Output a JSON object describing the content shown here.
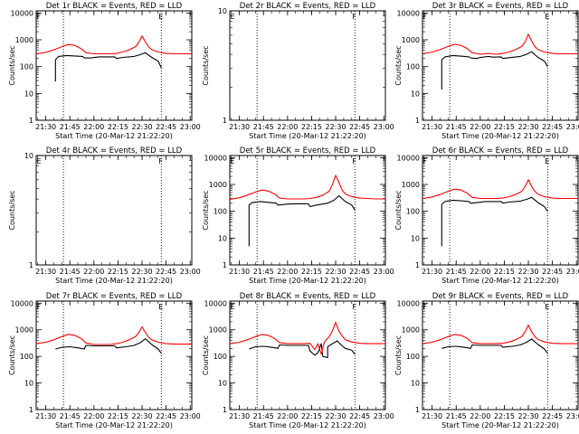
{
  "page": {
    "background": "#ffffff",
    "event_color": "#000000",
    "lld_color": "#ff0000"
  },
  "chart_data": [
    {
      "type": "line",
      "title": "Det 1r BLACK = Events, RED = LLD",
      "xlabel": "Start Time (20-Mar-12 21:22:20)",
      "ylabel": "Counts/sec",
      "xlim": [
        "21:24",
        "23:01"
      ],
      "ylim": [
        1,
        12000
      ],
      "yscale": "log",
      "xticks": [
        "21:30",
        "21:45",
        "22:00",
        "22:15",
        "22:30",
        "22:45",
        "23:00"
      ],
      "yticks": [
        "1",
        "10",
        "100",
        "1000",
        "10000"
      ],
      "markers": {
        "F": "21:26",
        "E": "22:42"
      },
      "vlines": [
        "21:41",
        "22:42"
      ],
      "series": [
        {
          "name": "Events",
          "color": "#000000",
          "x": [
            "21:36",
            "21:36",
            "21:38",
            "21:43",
            "21:48",
            "21:53",
            "21:54",
            "21:58",
            "22:03",
            "22:13",
            "22:14",
            "22:18",
            "22:25",
            "22:29",
            "22:32",
            "22:36",
            "22:40",
            "22:42"
          ],
          "y": [
            28,
            180,
            240,
            260,
            250,
            240,
            210,
            210,
            230,
            230,
            200,
            220,
            240,
            280,
            330,
            220,
            160,
            90
          ]
        },
        {
          "name": "LLD",
          "color": "#ff0000",
          "x": [
            "21:24",
            "21:30",
            "21:35",
            "21:40",
            "21:44",
            "21:48",
            "21:52",
            "21:55",
            "22:00",
            "22:05",
            "22:10",
            "22:14",
            "22:18",
            "22:22",
            "22:26",
            "22:28",
            "22:30",
            "22:32",
            "22:34",
            "22:36",
            "22:40",
            "22:45",
            "22:50",
            "22:55",
            "23:01"
          ],
          "y": [
            300,
            340,
            420,
            560,
            670,
            620,
            470,
            330,
            300,
            300,
            300,
            310,
            350,
            420,
            560,
            800,
            1400,
            850,
            560,
            430,
            350,
            310,
            300,
            300,
            300
          ]
        }
      ]
    },
    {
      "type": "line",
      "title": "Det 2r BLACK = Events, RED = LLD",
      "xlabel": "Start Time (20-Mar-12 21:22:20)",
      "ylabel": "Counts/sec",
      "xlim": [
        "21:24",
        "23:01"
      ],
      "ylim": [
        1,
        10
      ],
      "yscale": "log",
      "xticks": [
        "21:30",
        "21:45",
        "22:00",
        "22:15",
        "22:30",
        "22:45",
        "23:00"
      ],
      "yticks": [
        "1",
        "10"
      ],
      "markers": {
        "E": "21:26",
        "F": "22:42"
      },
      "vlines": [
        "21:41",
        "22:42"
      ],
      "series": []
    },
    {
      "type": "line",
      "title": "Det 3r BLACK = Events, RED = LLD",
      "xlabel": "Start Time (20-Mar-12 21:22:20)",
      "ylabel": "Counts/sec",
      "xlim": [
        "21:24",
        "23:01"
      ],
      "ylim": [
        1,
        12000
      ],
      "yscale": "log",
      "xticks": [
        "21:30",
        "21:45",
        "22:00",
        "22:15",
        "22:30",
        "22:45",
        "23:00"
      ],
      "yticks": [
        "1",
        "10",
        "100",
        "1000",
        "10000"
      ],
      "markers": {
        "F": "21:26",
        "E": "22:42"
      },
      "vlines": [
        "21:41",
        "22:42"
      ],
      "series": [
        {
          "name": "Events",
          "color": "#000000",
          "x": [
            "21:36",
            "21:36",
            "21:38",
            "21:43",
            "21:48",
            "21:53",
            "21:54",
            "21:58",
            "22:00",
            "22:05",
            "22:08",
            "22:13",
            "22:14",
            "22:18",
            "22:25",
            "22:29",
            "22:32",
            "22:36",
            "22:40",
            "22:42"
          ],
          "y": [
            14,
            180,
            230,
            260,
            245,
            230,
            210,
            200,
            220,
            240,
            225,
            230,
            200,
            215,
            240,
            290,
            360,
            220,
            160,
            100
          ]
        },
        {
          "name": "LLD",
          "color": "#ff0000",
          "x": [
            "21:24",
            "21:30",
            "21:35",
            "21:40",
            "21:44",
            "21:48",
            "21:52",
            "21:55",
            "22:00",
            "22:05",
            "22:10",
            "22:14",
            "22:18",
            "22:22",
            "22:26",
            "22:28",
            "22:30",
            "22:32",
            "22:34",
            "22:36",
            "22:40",
            "22:45",
            "22:50",
            "22:55",
            "23:01"
          ],
          "y": [
            300,
            350,
            430,
            570,
            680,
            620,
            470,
            330,
            290,
            310,
            290,
            310,
            350,
            430,
            570,
            850,
            1600,
            900,
            570,
            430,
            350,
            310,
            300,
            300,
            300
          ]
        }
      ]
    },
    {
      "type": "line",
      "title": "Det 4r BLACK = Events, RED = LLD",
      "xlabel": "Start Time (20-Mar-12 21:22:20)",
      "ylabel": "Counts/sec",
      "xlim": [
        "21:24",
        "23:01"
      ],
      "ylim": [
        1,
        10
      ],
      "yscale": "log",
      "xticks": [
        "21:30",
        "21:45",
        "22:00",
        "22:15",
        "22:30",
        "22:45",
        "23:00"
      ],
      "yticks": [
        "1",
        "10"
      ],
      "markers": {
        "E": "21:26",
        "F": "22:42"
      },
      "vlines": [
        "21:41",
        "22:42"
      ],
      "series": []
    },
    {
      "type": "line",
      "title": "Det 5r BLACK = Events, RED = LLD",
      "xlabel": "Start Time (20-Mar-12 21:22:20)",
      "ylabel": "Counts/sec",
      "xlim": [
        "21:24",
        "23:01"
      ],
      "ylim": [
        1,
        12000
      ],
      "yscale": "log",
      "xticks": [
        "21:30",
        "21:45",
        "22:00",
        "22:15",
        "22:30",
        "22:45",
        "23:00"
      ],
      "yticks": [
        "1",
        "10",
        "100",
        "1000",
        "10000"
      ],
      "markers": {
        "E": "21:26",
        "F": "22:42"
      },
      "vlines": [
        "21:41",
        "22:42"
      ],
      "series": [
        {
          "name": "Events",
          "color": "#000000",
          "x": [
            "21:36",
            "21:36",
            "21:38",
            "21:43",
            "21:48",
            "21:53",
            "21:54",
            "21:58",
            "22:03",
            "22:13",
            "22:14",
            "22:18",
            "22:25",
            "22:29",
            "22:32",
            "22:36",
            "22:40",
            "22:42"
          ],
          "y": [
            5,
            170,
            210,
            230,
            215,
            200,
            170,
            180,
            190,
            190,
            150,
            170,
            200,
            260,
            380,
            230,
            170,
            110
          ]
        },
        {
          "name": "LLD",
          "color": "#ff0000",
          "x": [
            "21:24",
            "21:30",
            "21:35",
            "21:40",
            "21:44",
            "21:48",
            "21:52",
            "21:55",
            "22:00",
            "22:05",
            "22:10",
            "22:14",
            "22:18",
            "22:22",
            "22:26",
            "22:28",
            "22:30",
            "22:32",
            "22:34",
            "22:36",
            "22:40",
            "22:45",
            "22:50",
            "22:55",
            "23:01"
          ],
          "y": [
            280,
            320,
            400,
            520,
            620,
            570,
            440,
            310,
            290,
            290,
            290,
            300,
            330,
            400,
            560,
            1000,
            2200,
            1200,
            620,
            440,
            350,
            310,
            300,
            290,
            290
          ]
        }
      ]
    },
    {
      "type": "line",
      "title": "Det 6r BLACK = Events, RED = LLD",
      "xlabel": "Start Time (20-Mar-12 21:22:20)",
      "ylabel": "Counts/sec",
      "xlim": [
        "21:24",
        "23:01"
      ],
      "ylim": [
        1,
        12000
      ],
      "yscale": "log",
      "xticks": [
        "21:30",
        "21:45",
        "22:00",
        "22:15",
        "22:30",
        "22:45",
        "23:00"
      ],
      "yticks": [
        "1",
        "10",
        "100",
        "1000",
        "10000"
      ],
      "markers": {
        "F": "21:26",
        "E": "22:42"
      },
      "vlines": [
        "21:41",
        "22:42"
      ],
      "series": [
        {
          "name": "Events",
          "color": "#000000",
          "x": [
            "21:36",
            "21:36",
            "21:38",
            "21:43",
            "21:48",
            "21:53",
            "21:54",
            "21:58",
            "22:03",
            "22:13",
            "22:14",
            "22:18",
            "22:25",
            "22:29",
            "22:32",
            "22:36",
            "22:40",
            "22:42"
          ],
          "y": [
            5,
            180,
            230,
            260,
            245,
            230,
            200,
            210,
            230,
            230,
            200,
            220,
            240,
            280,
            330,
            210,
            150,
            100
          ]
        },
        {
          "name": "LLD",
          "color": "#ff0000",
          "x": [
            "21:24",
            "21:30",
            "21:35",
            "21:40",
            "21:44",
            "21:48",
            "21:52",
            "21:55",
            "22:00",
            "22:05",
            "22:10",
            "22:14",
            "22:18",
            "22:22",
            "22:26",
            "22:28",
            "22:30",
            "22:32",
            "22:34",
            "22:36",
            "22:40",
            "22:45",
            "22:50",
            "22:55",
            "23:01"
          ],
          "y": [
            300,
            340,
            420,
            560,
            670,
            620,
            470,
            330,
            300,
            300,
            300,
            310,
            350,
            420,
            560,
            850,
            1500,
            850,
            560,
            430,
            350,
            310,
            300,
            300,
            300
          ]
        }
      ]
    },
    {
      "type": "line",
      "title": "Det 7r BLACK = Events, RED = LLD",
      "xlabel": "Start Time (20-Mar-12 21:22:20)",
      "ylabel": "Counts/sec",
      "xlim": [
        "21:24",
        "23:01"
      ],
      "ylim": [
        1,
        12000
      ],
      "yscale": "log",
      "xticks": [
        "21:30",
        "21:45",
        "22:00",
        "22:15",
        "22:30",
        "22:45",
        "23:00"
      ],
      "yticks": [
        "1",
        "10",
        "100",
        "1000",
        "10000"
      ],
      "markers": {
        "F": "21:26",
        "E": "22:42"
      },
      "vlines": [
        "21:41",
        "22:42"
      ],
      "series": [
        {
          "name": "Events",
          "color": "#000000",
          "x": [
            "21:36",
            "21:40",
            "21:45",
            "21:50",
            "21:54",
            "21:55",
            "22:00",
            "22:05",
            "22:13",
            "22:14",
            "22:20",
            "22:25",
            "22:29",
            "22:32",
            "22:36",
            "22:40",
            "22:42"
          ],
          "y": [
            190,
            220,
            230,
            210,
            190,
            260,
            250,
            250,
            250,
            210,
            230,
            260,
            330,
            460,
            280,
            190,
            130
          ]
        },
        {
          "name": "LLD",
          "color": "#ff0000",
          "x": [
            "21:24",
            "21:30",
            "21:35",
            "21:40",
            "21:44",
            "21:48",
            "21:52",
            "21:55",
            "22:00",
            "22:05",
            "22:10",
            "22:14",
            "22:18",
            "22:22",
            "22:26",
            "22:28",
            "22:30",
            "22:32",
            "22:34",
            "22:36",
            "22:40",
            "22:45",
            "22:50",
            "22:55",
            "23:01"
          ],
          "y": [
            300,
            340,
            420,
            560,
            680,
            620,
            470,
            320,
            280,
            280,
            280,
            300,
            340,
            420,
            560,
            800,
            1300,
            800,
            540,
            420,
            340,
            300,
            290,
            290,
            290
          ]
        }
      ]
    },
    {
      "type": "line",
      "title": "Det 8r BLACK = Events, RED = LLD",
      "xlabel": "Start Time (20-Mar-12 21:22:20)",
      "ylabel": "Counts/sec",
      "xlim": [
        "21:24",
        "23:01"
      ],
      "ylim": [
        1,
        12000
      ],
      "yscale": "log",
      "xticks": [
        "21:30",
        "21:45",
        "22:00",
        "22:15",
        "22:30",
        "22:45",
        "23:00"
      ],
      "yticks": [
        "1",
        "10",
        "100",
        "1000",
        "10000"
      ],
      "markers": {
        "E": "21:26",
        "F": "22:42"
      },
      "vlines": [
        "21:41",
        "22:42"
      ],
      "series": [
        {
          "name": "Events",
          "color": "#000000",
          "x": [
            "21:36",
            "21:40",
            "21:45",
            "21:50",
            "21:54",
            "21:55",
            "22:00",
            "22:05",
            "22:13",
            "22:14",
            "22:17",
            "22:19",
            "22:21",
            "22:22",
            "22:25",
            "22:25",
            "22:28",
            "22:31",
            "22:34",
            "22:36",
            "22:40",
            "22:42"
          ],
          "y": [
            190,
            230,
            240,
            220,
            200,
            270,
            260,
            260,
            260,
            160,
            110,
            140,
            300,
            100,
            90,
            230,
            300,
            380,
            250,
            200,
            170,
            120
          ]
        },
        {
          "name": "LLD",
          "color": "#ff0000",
          "x": [
            "21:24",
            "21:30",
            "21:35",
            "21:40",
            "21:44",
            "21:48",
            "21:52",
            "21:55",
            "22:00",
            "22:05",
            "22:10",
            "22:14",
            "22:17",
            "22:19",
            "22:21",
            "22:23",
            "22:26",
            "22:28",
            "22:30",
            "22:32",
            "22:34",
            "22:36",
            "22:40",
            "22:45",
            "22:50",
            "22:55",
            "23:01"
          ],
          "y": [
            300,
            340,
            420,
            560,
            670,
            620,
            470,
            330,
            300,
            300,
            300,
            310,
            180,
            300,
            120,
            350,
            560,
            900,
            1900,
            900,
            600,
            420,
            350,
            310,
            300,
            300,
            300
          ]
        }
      ]
    },
    {
      "type": "line",
      "title": "Det 9r BLACK = Events, RED = LLD",
      "xlabel": "Start Time (20-Mar-12 21:22:20)",
      "ylabel": "Counts/sec",
      "xlim": [
        "21:24",
        "23:01"
      ],
      "ylim": [
        1,
        12000
      ],
      "yscale": "log",
      "xticks": [
        "21:30",
        "21:45",
        "22:00",
        "22:15",
        "22:30",
        "22:45",
        "23:00"
      ],
      "yticks": [
        "1",
        "10",
        "100",
        "1000",
        "10000"
      ],
      "markers": {
        "F": "21:26",
        "E": "22:42"
      },
      "vlines": [
        "21:41",
        "22:42"
      ],
      "series": [
        {
          "name": "Events",
          "color": "#000000",
          "x": [
            "21:36",
            "21:40",
            "21:45",
            "21:50",
            "21:54",
            "21:55",
            "22:00",
            "22:05",
            "22:13",
            "22:14",
            "22:20",
            "22:25",
            "22:29",
            "22:32",
            "22:36",
            "22:40",
            "22:42"
          ],
          "y": [
            200,
            230,
            240,
            220,
            200,
            270,
            260,
            260,
            260,
            220,
            240,
            270,
            340,
            450,
            280,
            190,
            130
          ]
        },
        {
          "name": "LLD",
          "color": "#ff0000",
          "x": [
            "21:24",
            "21:30",
            "21:35",
            "21:40",
            "21:44",
            "21:48",
            "21:52",
            "21:55",
            "22:00",
            "22:05",
            "22:10",
            "22:14",
            "22:18",
            "22:22",
            "22:26",
            "22:28",
            "22:30",
            "22:32",
            "22:34",
            "22:36",
            "22:40",
            "22:45",
            "22:50",
            "22:55",
            "23:01"
          ],
          "y": [
            300,
            340,
            420,
            560,
            670,
            620,
            470,
            330,
            300,
            300,
            300,
            310,
            350,
            420,
            560,
            850,
            1500,
            850,
            560,
            430,
            350,
            310,
            300,
            300,
            300
          ]
        }
      ]
    }
  ]
}
